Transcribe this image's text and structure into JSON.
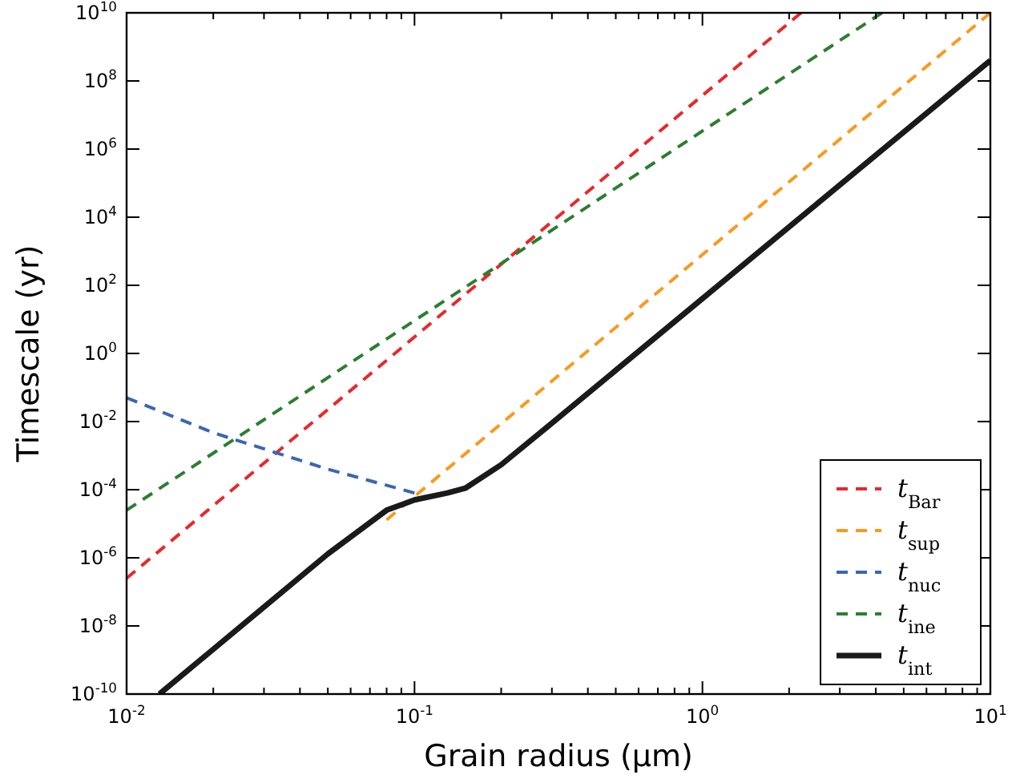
{
  "chart_data": {
    "type": "line",
    "xlabel": "Grain radius (μm)",
    "ylabel": "Timescale (yr)",
    "log": "xy",
    "xlim": [
      0.01,
      10
    ],
    "ylim": [
      1e-10,
      10000000000.0
    ],
    "xticks": [
      {
        "value": 0.01,
        "label": "10$^{-2}$"
      },
      {
        "value": 0.1,
        "label": "10$^{-1}$"
      },
      {
        "value": 1,
        "label": "10$^{0}$"
      },
      {
        "value": 10,
        "label": "10$^{1}$"
      }
    ],
    "yticks": [
      {
        "value": 1e-10,
        "label": "10$^{-10}$"
      },
      {
        "value": 1e-08,
        "label": "10$^{-8}$"
      },
      {
        "value": 1e-06,
        "label": "10$^{-6}$"
      },
      {
        "value": 0.0001,
        "label": "10$^{-4}$"
      },
      {
        "value": 0.01,
        "label": "10$^{-2}$"
      },
      {
        "value": 1,
        "label": "10$^{0}$"
      },
      {
        "value": 100,
        "label": "10$^{2}$"
      },
      {
        "value": 10000.0,
        "label": "10$^{4}$"
      },
      {
        "value": 1000000.0,
        "label": "10$^{6}$"
      },
      {
        "value": 100000000.0,
        "label": "10$^{8}$"
      },
      {
        "value": 10000000000.0,
        "label": "10$^{10}$"
      }
    ],
    "grid": false,
    "legend": "bottom right",
    "series": [
      {
        "name": "t$_{Bar}$",
        "color": "#e8282b",
        "line_style": "dashed",
        "x": [
          0.01,
          2.2
        ],
        "values": [
          2.5e-07,
          10000000000.0
        ]
      },
      {
        "name": "t$_{sup}$",
        "color": "#f89a1f",
        "line_style": "dashed",
        "x": [
          0.08,
          10
        ],
        "values": [
          1.3e-05,
          10000000000.0
        ]
      },
      {
        "name": "t$_{nuc}$",
        "color": "#3b66b0",
        "line_style": "dashed",
        "x": [
          0.01,
          0.02,
          0.05,
          0.1
        ],
        "values": [
          0.05,
          0.0047,
          0.0004,
          8e-05
        ]
      },
      {
        "name": "t$_{ine}$",
        "color": "#2e7d32",
        "line_style": "dashed",
        "x": [
          0.01,
          4.2
        ],
        "values": [
          2.5e-05,
          10000000000.0
        ]
      },
      {
        "name": "t$_{int}$",
        "color": "#1a1a1a",
        "line_style": "solid",
        "x": [
          0.013,
          0.05,
          0.08,
          0.1,
          0.13,
          0.15,
          0.2,
          0.3,
          10
        ],
        "values": [
          1e-10,
          1.3e-06,
          2.5e-05,
          5e-05,
          8e-05,
          0.00011,
          0.00054,
          0.009,
          400000000.0
        ]
      }
    ]
  }
}
